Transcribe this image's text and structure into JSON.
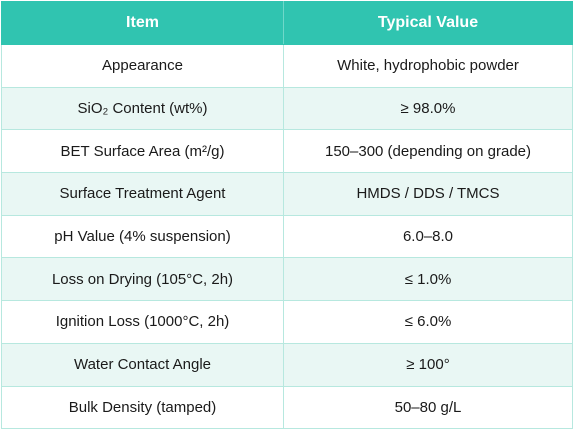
{
  "table": {
    "headers": [
      "Item",
      "Typical Value"
    ],
    "rows": [
      {
        "item": "Appearance",
        "value": "White, hydrophobic powder"
      },
      {
        "item": "SiO₂ Content (wt%)",
        "value": "≥ 98.0%"
      },
      {
        "item": "BET Surface Area (m²/g)",
        "value": "150–300 (depending on grade)"
      },
      {
        "item": "Surface Treatment Agent",
        "value": "HMDS / DDS / TMCS"
      },
      {
        "item": "pH Value (4% suspension)",
        "value": "6.0–8.0"
      },
      {
        "item": "Loss on Drying (105°C, 2h)",
        "value": "≤ 1.0%"
      },
      {
        "item": "Ignition Loss (1000°C, 2h)",
        "value": "≤ 6.0%"
      },
      {
        "item": "Water Contact Angle",
        "value": "≥ 100°"
      },
      {
        "item": "Bulk Density (tamped)",
        "value": "50–80 g/L"
      }
    ]
  },
  "colors": {
    "header_bg": "#30c4b0",
    "header_text": "#ffffff",
    "stripe_bg": "#e9f7f4",
    "border": "#b7e8df"
  }
}
